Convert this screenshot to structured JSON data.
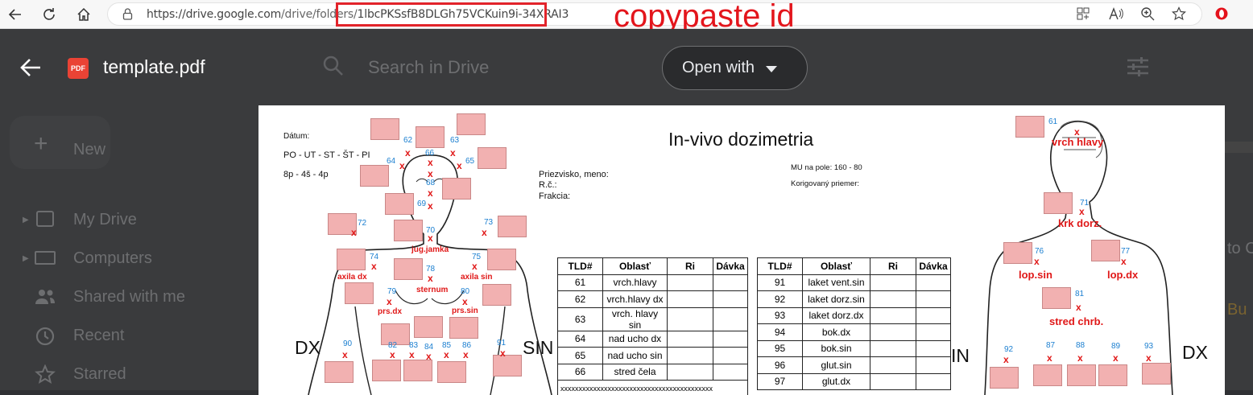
{
  "browser": {
    "url_host": "https://drive.google.com",
    "url_path": "/drive/folders/",
    "url_id": "1lbcPKSsfB8DLGh75VCKuin9i-34XRAI3",
    "annotation": "copypaste id"
  },
  "drive": {
    "title": "template.pdf",
    "pdf_badge": "PDF",
    "open_with": "Open with",
    "search_placeholder": "Search in Drive",
    "new_label": "New",
    "nav": [
      "My Drive",
      "Computers",
      "Shared with me",
      "Recent",
      "Starred"
    ],
    "right_partial_1": "to C",
    "right_partial_2": "Bu"
  },
  "doc": {
    "datum": "Dátum:",
    "days": "PO - UT - ST - ŠT - PI",
    "shifts": "8p - 4š - 4p",
    "title": "In-vivo dozimetria",
    "priezvisko": "Priezvisko, meno:",
    "rc": "R.č.:",
    "frakcia": "Frakcia:",
    "mu": "MU na pole: 160 - 80",
    "korig": "Korigovaný priemer:",
    "dx_left": "DX",
    "sin_left": "SIN",
    "in_right": "IN",
    "dx_right": "DX",
    "labels_front": {
      "jug": "jug.jamka",
      "axila_dx": "axila dx",
      "axila_sin": "axila sin",
      "sternum": "sternum",
      "prs_dx": "prs.dx",
      "prs_sin": "prs.sin"
    },
    "labels_back": {
      "vrch": "vrch hlavy",
      "krk": "krk dorz.",
      "lop_sin": "lop.sin",
      "lop_dx": "lop.dx",
      "stred": "stred chrb."
    },
    "table_headers": [
      "TLD#",
      "Oblasť",
      "Ri",
      "Dávka"
    ],
    "table1": [
      [
        "61",
        "vrch.hlavy"
      ],
      [
        "62",
        "vrch.hlavy dx"
      ],
      [
        "63",
        "vrch. hlavy sin"
      ],
      [
        "64",
        "nad ucho dx"
      ],
      [
        "65",
        "nad ucho sin"
      ],
      [
        "66",
        "stred čela"
      ]
    ],
    "table1_filler": "xxxxxxxxxxxxxxxxxxxxxxxxxxxxxxxxxxxxxxxxxx",
    "table2": [
      [
        "91",
        "laket vent.sin"
      ],
      [
        "92",
        "laket dorz.sin"
      ],
      [
        "93",
        "laket dorz.dx"
      ],
      [
        "94",
        "bok.dx"
      ],
      [
        "95",
        "bok.sin"
      ],
      [
        "96",
        "glut.sin"
      ],
      [
        "97",
        "glut.dx"
      ]
    ],
    "front_numbers": [
      "62",
      "66",
      "63",
      "64",
      "65",
      "68",
      "69",
      "72",
      "70",
      "73",
      "74",
      "75",
      "78",
      "79",
      "80",
      "90",
      "82",
      "83",
      "84",
      "85",
      "86",
      "91"
    ],
    "back_numbers": [
      "61",
      "71",
      "76",
      "77",
      "81",
      "92",
      "87",
      "88",
      "89",
      "93"
    ]
  }
}
